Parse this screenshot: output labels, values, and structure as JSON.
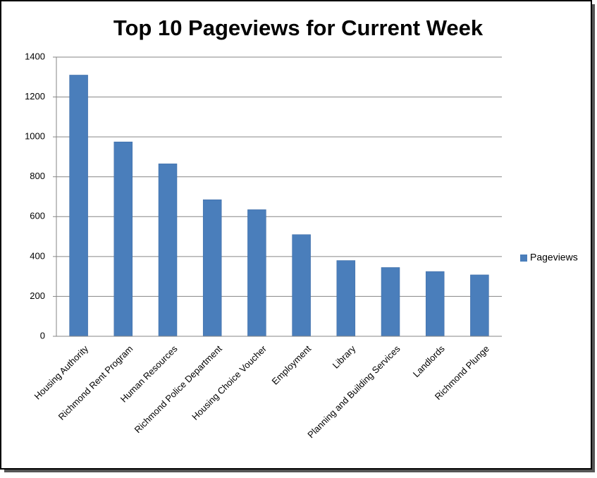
{
  "chart_data": {
    "type": "bar",
    "title": "Top 10 Pageviews for Current Week",
    "categories": [
      "Housing Authority",
      "Richmond Rent Program",
      "Human Resources",
      "Richmond Police Department",
      "Housing Choice Voucher",
      "Employment",
      "Library",
      "Planning and Building Services",
      "Landlords",
      "Richmond Plunge"
    ],
    "series": [
      {
        "name": "Pageviews",
        "color": "#4a7ebb",
        "values": [
          1310,
          975,
          865,
          685,
          635,
          510,
          380,
          345,
          325,
          308
        ]
      }
    ],
    "ylim": [
      0,
      1400
    ],
    "yticks": [
      0,
      200,
      400,
      600,
      800,
      1000,
      1200,
      1400
    ],
    "grid": true,
    "legend": "right"
  }
}
